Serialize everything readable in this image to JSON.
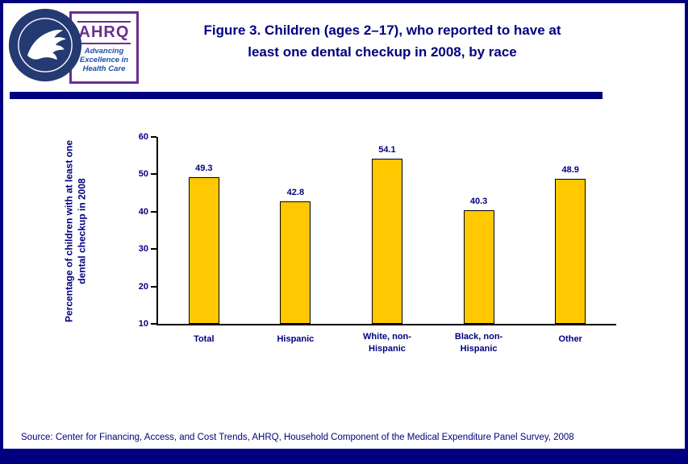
{
  "header": {
    "title_line1": "Figure 3. Children (ages 2–17), who reported to have at",
    "title_line2": "least one dental checkup in 2008, by race",
    "ahrq_logo": {
      "acronym": "AHRQ",
      "tagline": "Advancing\nExcellence in\nHealth Care"
    }
  },
  "chart_data": {
    "type": "bar",
    "title": "Figure 3. Children (ages 2–17), who reported to have at least one dental checkup in 2008, by race",
    "categories": [
      "Total",
      "Hispanic",
      "White, non-Hispanic",
      "Black, non-Hispanic",
      "Other"
    ],
    "values": [
      49.3,
      42.8,
      54.1,
      40.3,
      48.9
    ],
    "xlabel": "",
    "ylabel": "Percentage of children with at least one dental checkup in 2008",
    "ylim": [
      10,
      60
    ],
    "yticks": [
      10,
      20,
      30,
      40,
      50,
      60
    ],
    "grid": false,
    "legend": false,
    "bar_color": "#FFC800",
    "bar_border_color": "#000000",
    "label_color": "#000080"
  },
  "footer": {
    "source": "Source: Center for Financing, Access, and Cost Trends, AHRQ, Household Component of the Medical Expenditure Panel Survey, 2008"
  },
  "colors": {
    "accent_navy": "#000080",
    "logo_purple": "#6B2E8F",
    "tagline_blue": "#1F4FA8"
  }
}
